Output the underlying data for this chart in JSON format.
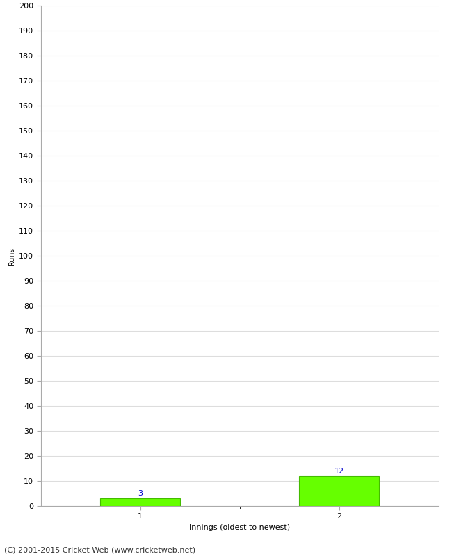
{
  "categories": [
    1,
    2
  ],
  "values": [
    3,
    12
  ],
  "bar_color": "#66ff00",
  "bar_edge_color": "#44bb00",
  "xlabel": "Innings (oldest to newest)",
  "ylabel": "Runs",
  "ylim": [
    0,
    200
  ],
  "yticks": [
    0,
    10,
    20,
    30,
    40,
    50,
    60,
    70,
    80,
    90,
    100,
    110,
    120,
    130,
    140,
    150,
    160,
    170,
    180,
    190,
    200
  ],
  "xticks": [
    1,
    2
  ],
  "value_labels": [
    3,
    12
  ],
  "value_label_color": "#0000cc",
  "footer": "(C) 2001-2015 Cricket Web (www.cricketweb.net)",
  "background_color": "#ffffff",
  "grid_color": "#dddddd",
  "axis_label_fontsize": 8,
  "tick_fontsize": 8,
  "value_label_fontsize": 8,
  "footer_fontsize": 8,
  "bar_width": 0.4,
  "xlim": [
    0.5,
    2.5
  ]
}
